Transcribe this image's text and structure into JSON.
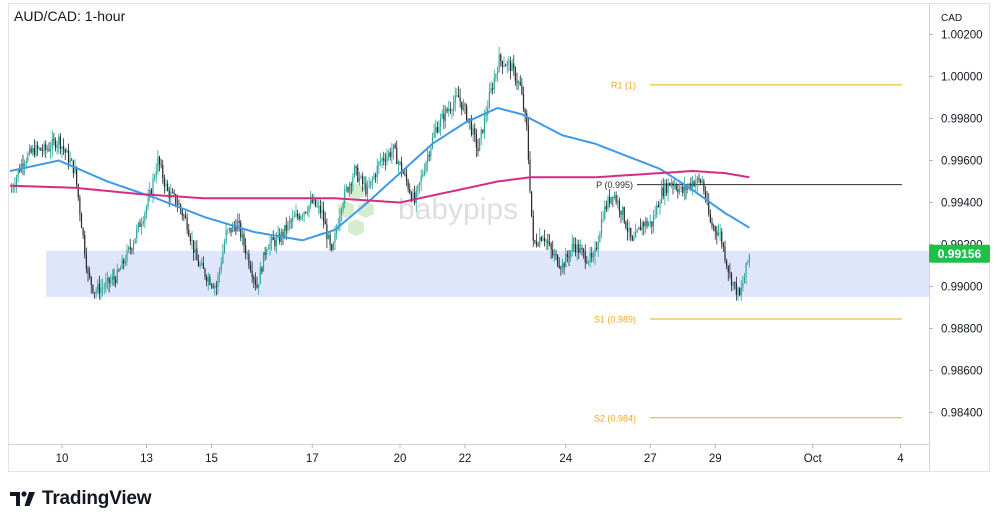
{
  "title": "AUD/CAD: 1-hour",
  "brand": "TradingView",
  "watermark": "babypips",
  "currency_label": "CAD",
  "colors": {
    "up": "#26a69a",
    "down": "#26282e",
    "ma_fast": "#3d9ae8",
    "ma_slow": "#d62a84",
    "level": "#f5a623",
    "pivot": "#2b2b2b",
    "zone": "#dfe5fb",
    "price_badge": "#1fbf4a"
  },
  "chart_data": {
    "type": "candlestick",
    "x_ticks": [
      "10",
      "13",
      "15",
      "17",
      "20",
      "22",
      "24",
      "27",
      "29",
      "Oct",
      "4"
    ],
    "y_ticks": [
      "1.00200",
      "1.00000",
      "0.99800",
      "0.99600",
      "0.99400",
      "0.99200",
      "0.99000",
      "0.98800",
      "0.98600",
      "0.98400"
    ],
    "ylim": [
      0.9825,
      1.0035
    ],
    "grid": false,
    "current_price": "0.99156",
    "zone": [
      0.9895,
      0.9917
    ],
    "levels": [
      {
        "label": "R1 (1)",
        "value": 0.9996
      },
      {
        "label": "P (0.995)",
        "value": 0.99485
      },
      {
        "label": "S1 (0.989)",
        "value": 0.98845
      },
      {
        "label": "S2 (0.984)",
        "value": 0.98375
      }
    ],
    "close_path": [
      [
        0,
        0.9945
      ],
      [
        8,
        0.996
      ],
      [
        15,
        0.9965
      ],
      [
        22,
        0.9965
      ],
      [
        30,
        0.997
      ],
      [
        40,
        0.9955
      ],
      [
        48,
        0.9905
      ],
      [
        52,
        0.9898
      ],
      [
        58,
        0.99
      ],
      [
        66,
        0.9905
      ],
      [
        75,
        0.992
      ],
      [
        85,
        0.994
      ],
      [
        91,
        0.996
      ],
      [
        97,
        0.9945
      ],
      [
        103,
        0.994
      ],
      [
        109,
        0.993
      ],
      [
        115,
        0.9912
      ],
      [
        121,
        0.9905
      ],
      [
        127,
        0.99
      ],
      [
        133,
        0.9925
      ],
      [
        140,
        0.993
      ],
      [
        146,
        0.9915
      ],
      [
        152,
        0.99
      ],
      [
        158,
        0.992
      ],
      [
        165,
        0.9922
      ],
      [
        172,
        0.993
      ],
      [
        179,
        0.9935
      ],
      [
        186,
        0.994
      ],
      [
        192,
        0.9935
      ],
      [
        198,
        0.9915
      ],
      [
        204,
        0.994
      ],
      [
        212,
        0.9955
      ],
      [
        220,
        0.9945
      ],
      [
        228,
        0.996
      ],
      [
        236,
        0.9965
      ],
      [
        244,
        0.995
      ],
      [
        249,
        0.994
      ],
      [
        256,
        0.996
      ],
      [
        262,
        0.9975
      ],
      [
        270,
        0.9985
      ],
      [
        276,
        0.999
      ],
      [
        282,
        0.998
      ],
      [
        288,
        0.9965
      ],
      [
        295,
        0.999
      ],
      [
        301,
        1.0008
      ],
      [
        308,
        1.0005
      ],
      [
        314,
        0.9995
      ],
      [
        318,
        0.9975
      ],
      [
        322,
        0.992
      ],
      [
        328,
        0.9925
      ],
      [
        334,
        0.9915
      ],
      [
        340,
        0.991
      ],
      [
        347,
        0.992
      ],
      [
        353,
        0.9915
      ],
      [
        359,
        0.9912
      ],
      [
        365,
        0.9935
      ],
      [
        371,
        0.9945
      ],
      [
        377,
        0.9935
      ],
      [
        383,
        0.992
      ],
      [
        389,
        0.993
      ],
      [
        395,
        0.993
      ],
      [
        401,
        0.9945
      ],
      [
        407,
        0.995
      ],
      [
        414,
        0.9945
      ],
      [
        420,
        0.995
      ],
      [
        426,
        0.995
      ],
      [
        431,
        0.993
      ],
      [
        437,
        0.9925
      ],
      [
        443,
        0.9905
      ],
      [
        449,
        0.9895
      ],
      [
        455,
        0.9915
      ]
    ],
    "ma_fast": [
      [
        0,
        0.9955
      ],
      [
        30,
        0.996
      ],
      [
        60,
        0.995
      ],
      [
        90,
        0.9942
      ],
      [
        120,
        0.9933
      ],
      [
        150,
        0.9926
      ],
      [
        180,
        0.9922
      ],
      [
        200,
        0.9927
      ],
      [
        220,
        0.994
      ],
      [
        240,
        0.9954
      ],
      [
        260,
        0.9968
      ],
      [
        280,
        0.9978
      ],
      [
        300,
        0.9985
      ],
      [
        315,
        0.9982
      ],
      [
        340,
        0.9972
      ],
      [
        360,
        0.9968
      ],
      [
        380,
        0.9962
      ],
      [
        400,
        0.9956
      ],
      [
        420,
        0.9946
      ],
      [
        440,
        0.9935
      ],
      [
        455,
        0.9928
      ]
    ],
    "ma_slow": [
      [
        0,
        0.9948
      ],
      [
        40,
        0.9947
      ],
      [
        80,
        0.9944
      ],
      [
        120,
        0.9942
      ],
      [
        160,
        0.9942
      ],
      [
        200,
        0.9942
      ],
      [
        240,
        0.994
      ],
      [
        270,
        0.9945
      ],
      [
        300,
        0.995
      ],
      [
        320,
        0.9952
      ],
      [
        340,
        0.9952
      ],
      [
        360,
        0.9952
      ],
      [
        380,
        0.9953
      ],
      [
        400,
        0.9954
      ],
      [
        420,
        0.9955
      ],
      [
        440,
        0.9954
      ],
      [
        455,
        0.9952
      ]
    ]
  }
}
